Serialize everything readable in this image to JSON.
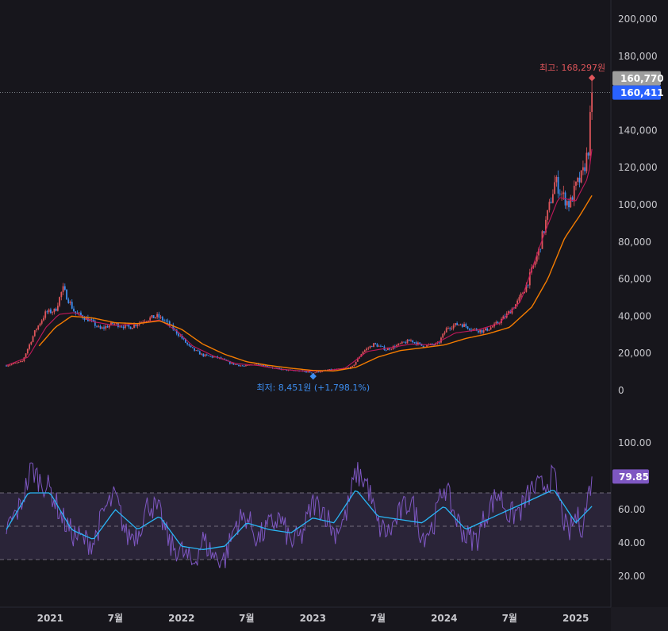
{
  "colors": {
    "background": "#17161c",
    "up": "#e0565b",
    "down": "#3d8ef0",
    "ma_short": "#c2185b",
    "ma_long": "#f57c00",
    "rsi_line": "#7e57c2",
    "rsi_signal": "#29b6f6",
    "rsi_band": "#2a2438",
    "last_badge": "#9e9e9e",
    "price_badge": "#2962ff",
    "rsi_badge": "#7e57c2"
  },
  "chart_data": [
    {
      "type": "candlestick",
      "name": "price",
      "y_axis": {
        "ticks": [
          0,
          20000,
          40000,
          60000,
          80000,
          100000,
          120000,
          140000,
          160000,
          180000,
          200000
        ],
        "tick_labels": [
          "0",
          "20,000",
          "40,000",
          "60,000",
          "80,000",
          "100,000",
          "120,000",
          "140,000",
          "160,000",
          "180,000",
          "200,000"
        ],
        "range": [
          0,
          200000
        ]
      },
      "x_axis": {
        "range": [
          "2020-09-01",
          "2025-02-28"
        ]
      },
      "grid": false,
      "approx_close_path": [
        [
          "2020-09-01",
          13500
        ],
        [
          "2020-10-15",
          15500
        ],
        [
          "2020-11-20",
          32000
        ],
        [
          "2020-12-20",
          42000
        ],
        [
          "2021-01-15",
          43000
        ],
        [
          "2021-02-05",
          55000
        ],
        [
          "2021-03-10",
          42000
        ],
        [
          "2021-04-20",
          38000
        ],
        [
          "2021-05-20",
          33000
        ],
        [
          "2021-06-25",
          36000
        ],
        [
          "2021-08-10",
          34000
        ],
        [
          "2021-09-20",
          38000
        ],
        [
          "2021-10-25",
          40000
        ],
        [
          "2021-11-20",
          37000
        ],
        [
          "2021-12-25",
          30000
        ],
        [
          "2022-01-25",
          23000
        ],
        [
          "2022-03-01",
          19000
        ],
        [
          "2022-04-15",
          17500
        ],
        [
          "2022-05-20",
          14500
        ],
        [
          "2022-06-25",
          13000
        ],
        [
          "2022-08-01",
          14500
        ],
        [
          "2022-09-15",
          12000
        ],
        [
          "2022-10-20",
          11000
        ],
        [
          "2022-11-25",
          10500
        ],
        [
          "2023-01-02",
          9500
        ],
        [
          "2023-02-10",
          11000
        ],
        [
          "2023-03-20",
          11500
        ],
        [
          "2023-04-20",
          12500
        ],
        [
          "2023-05-20",
          21000
        ],
        [
          "2023-06-20",
          25000
        ],
        [
          "2023-07-25",
          22000
        ],
        [
          "2023-09-01",
          25000
        ],
        [
          "2023-10-01",
          27000
        ],
        [
          "2023-11-01",
          24000
        ],
        [
          "2023-12-15",
          25000
        ],
        [
          "2024-01-10",
          34000
        ],
        [
          "2024-02-15",
          36000
        ],
        [
          "2024-03-20",
          33000
        ],
        [
          "2024-04-20",
          32000
        ],
        [
          "2024-05-20",
          35000
        ],
        [
          "2024-06-20",
          40000
        ],
        [
          "2024-07-25",
          48000
        ],
        [
          "2024-08-20",
          58000
        ],
        [
          "2024-09-20",
          75000
        ],
        [
          "2024-10-15",
          95000
        ],
        [
          "2024-11-05",
          113000
        ],
        [
          "2024-11-25",
          105000
        ],
        [
          "2024-12-15",
          100000
        ],
        [
          "2025-01-02",
          110000
        ],
        [
          "2025-01-20",
          116000
        ],
        [
          "2025-02-05",
          130000
        ],
        [
          "2025-02-15",
          160411
        ]
      ],
      "ma_short": [
        [
          "2020-09-01",
          13500
        ],
        [
          "2020-11-01",
          18000
        ],
        [
          "2020-12-20",
          34000
        ],
        [
          "2021-01-25",
          41000
        ],
        [
          "2021-03-10",
          42000
        ],
        [
          "2021-05-01",
          37000
        ],
        [
          "2021-07-01",
          35000
        ],
        [
          "2021-09-01",
          36000
        ],
        [
          "2021-11-01",
          38000
        ],
        [
          "2021-12-20",
          32000
        ],
        [
          "2022-02-01",
          24000
        ],
        [
          "2022-04-01",
          18500
        ],
        [
          "2022-06-01",
          14500
        ],
        [
          "2022-08-01",
          13500
        ],
        [
          "2022-10-01",
          11500
        ],
        [
          "2022-12-01",
          10500
        ],
        [
          "2023-02-01",
          10500
        ],
        [
          "2023-04-01",
          12000
        ],
        [
          "2023-06-01",
          21000
        ],
        [
          "2023-08-01",
          23000
        ],
        [
          "2023-10-01",
          25000
        ],
        [
          "2023-12-01",
          24500
        ],
        [
          "2024-02-01",
          31000
        ],
        [
          "2024-04-01",
          32500
        ],
        [
          "2024-06-01",
          36000
        ],
        [
          "2024-08-01",
          48000
        ],
        [
          "2024-10-01",
          82000
        ],
        [
          "2024-11-15",
          104000
        ],
        [
          "2025-01-01",
          102000
        ],
        [
          "2025-02-05",
          115000
        ],
        [
          "2025-02-15",
          130000
        ]
      ],
      "ma_long": [
        [
          "2020-12-01",
          24000
        ],
        [
          "2021-01-15",
          34000
        ],
        [
          "2021-03-01",
          40000
        ],
        [
          "2021-05-01",
          39000
        ],
        [
          "2021-07-01",
          36500
        ],
        [
          "2021-09-01",
          36000
        ],
        [
          "2021-11-01",
          37500
        ],
        [
          "2022-01-01",
          33000
        ],
        [
          "2022-03-01",
          25000
        ],
        [
          "2022-05-01",
          19500
        ],
        [
          "2022-07-01",
          15500
        ],
        [
          "2022-09-01",
          13500
        ],
        [
          "2022-11-01",
          12000
        ],
        [
          "2023-01-01",
          10800
        ],
        [
          "2023-03-01",
          10500
        ],
        [
          "2023-05-01",
          12500
        ],
        [
          "2023-07-01",
          18000
        ],
        [
          "2023-09-01",
          21500
        ],
        [
          "2023-11-01",
          23000
        ],
        [
          "2024-01-01",
          24500
        ],
        [
          "2024-03-01",
          28000
        ],
        [
          "2024-05-01",
          30500
        ],
        [
          "2024-07-01",
          34000
        ],
        [
          "2024-09-01",
          45000
        ],
        [
          "2024-10-15",
          60000
        ],
        [
          "2024-12-01",
          82000
        ],
        [
          "2025-01-15",
          95000
        ],
        [
          "2025-02-15",
          105000
        ]
      ],
      "annotations": {
        "high": {
          "date": "2025-02-15",
          "value": 168297,
          "label": "최고: 168,297원"
        },
        "low": {
          "date": "2023-01-02",
          "value": 8451,
          "label": "최저: 8,451원 (+1,798.1%)"
        }
      },
      "last_badge": {
        "value": 160770,
        "label": "160,770"
      },
      "price_badge": {
        "value": 160411,
        "label": "160,411"
      },
      "price_line": 160411
    },
    {
      "type": "line",
      "name": "RSI",
      "y_axis": {
        "ticks": [
          20,
          40,
          60,
          100
        ],
        "tick_labels": [
          "20.00",
          "40.00",
          "60.00",
          "100.00"
        ],
        "range": [
          10,
          105
        ]
      },
      "bands": {
        "upper": 70,
        "middle": 50,
        "lower": 30
      },
      "rsi_path": [
        [
          "2020-09-01",
          48
        ],
        [
          "2020-10-10",
          62
        ],
        [
          "2020-11-10",
          85
        ],
        [
          "2020-12-01",
          78
        ],
        [
          "2021-01-01",
          72
        ],
        [
          "2021-02-01",
          56
        ],
        [
          "2021-03-01",
          46
        ],
        [
          "2021-04-01",
          42
        ],
        [
          "2021-05-01",
          40
        ],
        [
          "2021-06-01",
          60
        ],
        [
          "2021-07-01",
          68
        ],
        [
          "2021-08-01",
          44
        ],
        [
          "2021-09-01",
          46
        ],
        [
          "2021-10-01",
          64
        ],
        [
          "2021-11-01",
          58
        ],
        [
          "2021-12-01",
          38
        ],
        [
          "2022-01-01",
          35
        ],
        [
          "2022-02-01",
          27
        ],
        [
          "2022-03-01",
          42
        ],
        [
          "2022-04-01",
          32
        ],
        [
          "2022-05-01",
          30
        ],
        [
          "2022-06-01",
          52
        ],
        [
          "2022-07-01",
          56
        ],
        [
          "2022-08-01",
          42
        ],
        [
          "2022-09-01",
          50
        ],
        [
          "2022-10-01",
          55
        ],
        [
          "2022-11-01",
          40
        ],
        [
          "2022-12-01",
          44
        ],
        [
          "2023-01-01",
          64
        ],
        [
          "2023-02-01",
          60
        ],
        [
          "2023-03-01",
          46
        ],
        [
          "2023-04-01",
          55
        ],
        [
          "2023-05-01",
          82
        ],
        [
          "2023-06-01",
          76
        ],
        [
          "2023-07-01",
          50
        ],
        [
          "2023-08-01",
          46
        ],
        [
          "2023-09-01",
          58
        ],
        [
          "2023-10-01",
          66
        ],
        [
          "2023-11-01",
          44
        ],
        [
          "2023-12-01",
          50
        ],
        [
          "2024-01-01",
          75
        ],
        [
          "2024-02-01",
          56
        ],
        [
          "2024-03-01",
          44
        ],
        [
          "2024-04-01",
          42
        ],
        [
          "2024-05-01",
          60
        ],
        [
          "2024-06-01",
          70
        ],
        [
          "2024-07-01",
          56
        ],
        [
          "2024-08-01",
          60
        ],
        [
          "2024-09-01",
          72
        ],
        [
          "2024-10-01",
          74
        ],
        [
          "2024-11-01",
          80
        ],
        [
          "2024-11-20",
          62
        ],
        [
          "2024-12-10",
          44
        ],
        [
          "2025-01-01",
          56
        ],
        [
          "2025-01-20",
          50
        ],
        [
          "2025-02-15",
          79.85
        ]
      ],
      "rsi_signal": [
        [
          "2020-09-01",
          48
        ],
        [
          "2020-11-01",
          70
        ],
        [
          "2021-01-01",
          70
        ],
        [
          "2021-03-01",
          48
        ],
        [
          "2021-05-01",
          42
        ],
        [
          "2021-07-01",
          60
        ],
        [
          "2021-09-01",
          48
        ],
        [
          "2021-11-01",
          56
        ],
        [
          "2022-01-01",
          38
        ],
        [
          "2022-03-01",
          36
        ],
        [
          "2022-05-01",
          38
        ],
        [
          "2022-07-01",
          52
        ],
        [
          "2022-09-01",
          48
        ],
        [
          "2022-11-01",
          46
        ],
        [
          "2023-01-01",
          55
        ],
        [
          "2023-03-01",
          52
        ],
        [
          "2023-05-01",
          72
        ],
        [
          "2023-07-01",
          56
        ],
        [
          "2023-09-01",
          54
        ],
        [
          "2023-11-01",
          52
        ],
        [
          "2024-01-01",
          62
        ],
        [
          "2024-03-01",
          48
        ],
        [
          "2024-05-01",
          54
        ],
        [
          "2024-07-01",
          60
        ],
        [
          "2024-09-01",
          66
        ],
        [
          "2024-11-01",
          72
        ],
        [
          "2025-01-01",
          52
        ],
        [
          "2025-02-15",
          62
        ]
      ],
      "last_badge": {
        "value": 79.85,
        "label": "79.85"
      }
    }
  ],
  "time_axis": [
    {
      "date": "2021-01-01",
      "label": "2021"
    },
    {
      "date": "2021-07-01",
      "label": "7월"
    },
    {
      "date": "2022-01-01",
      "label": "2022"
    },
    {
      "date": "2022-07-01",
      "label": "7월"
    },
    {
      "date": "2023-01-01",
      "label": "2023"
    },
    {
      "date": "2023-07-01",
      "label": "7월"
    },
    {
      "date": "2024-01-01",
      "label": "2024"
    },
    {
      "date": "2024-07-01",
      "label": "7월"
    },
    {
      "date": "2025-01-01",
      "label": "2025"
    }
  ]
}
